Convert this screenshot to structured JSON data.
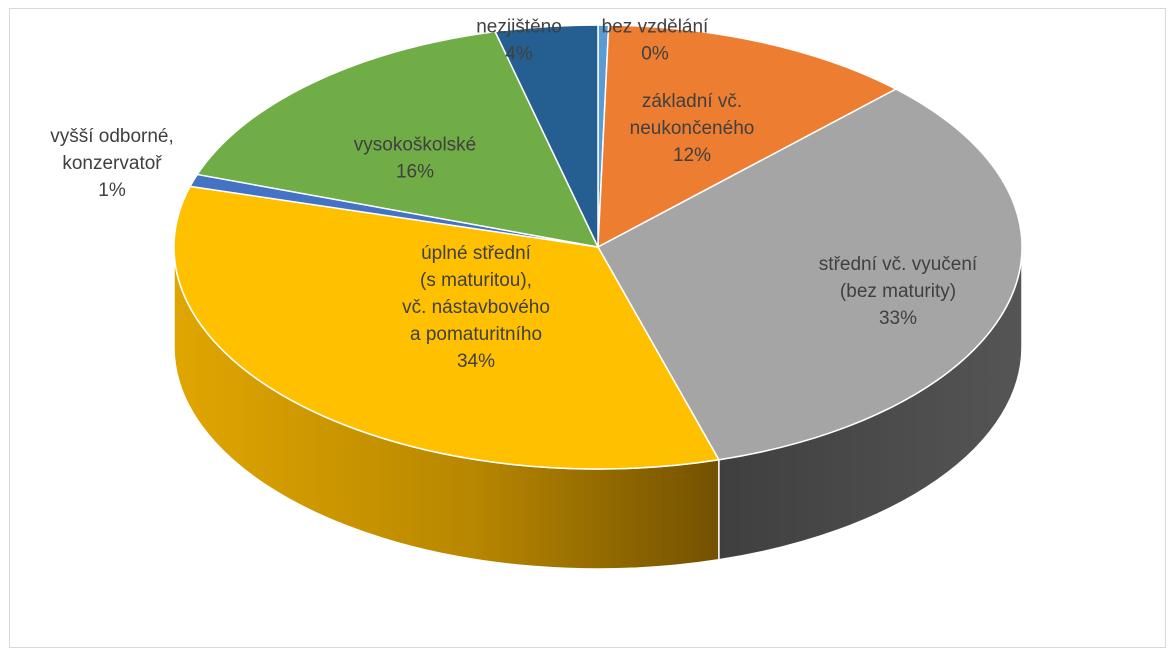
{
  "chart_data": {
    "type": "pie",
    "style": "3d",
    "slices": [
      {
        "label_lines": [
          "bez vzdělání"
        ],
        "pct_label": "0%",
        "value": 0.4,
        "color": "#5b9bd5"
      },
      {
        "label_lines": [
          "základní vč.",
          "neukončeného"
        ],
        "pct_label": "12%",
        "value": 12,
        "color": "#ed7d31"
      },
      {
        "label_lines": [
          "střední vč. vyučení",
          "(bez maturity)"
        ],
        "pct_label": "33%",
        "value": 33,
        "color": "#a5a5a5"
      },
      {
        "label_lines": [
          "úplné střední",
          "(s maturitou),",
          "vč. nástavbového",
          "a pomaturitního"
        ],
        "pct_label": "34%",
        "value": 34,
        "color": "#ffc000"
      },
      {
        "label_lines": [
          "vyšší odborné,",
          "konzervatoř"
        ],
        "pct_label": "1%",
        "value": 0.9,
        "color": "#4472c4"
      },
      {
        "label_lines": [
          "vysokoškolské"
        ],
        "pct_label": "16%",
        "value": 15.8,
        "color": "#70ad47"
      },
      {
        "label_lines": [
          "nezjištěno"
        ],
        "pct_label": "4%",
        "value": 3.9,
        "color": "#255e91"
      }
    ],
    "side_colors": {
      "grey_side": "#474747",
      "yellow_side": "#b08300"
    },
    "legend": "none"
  }
}
